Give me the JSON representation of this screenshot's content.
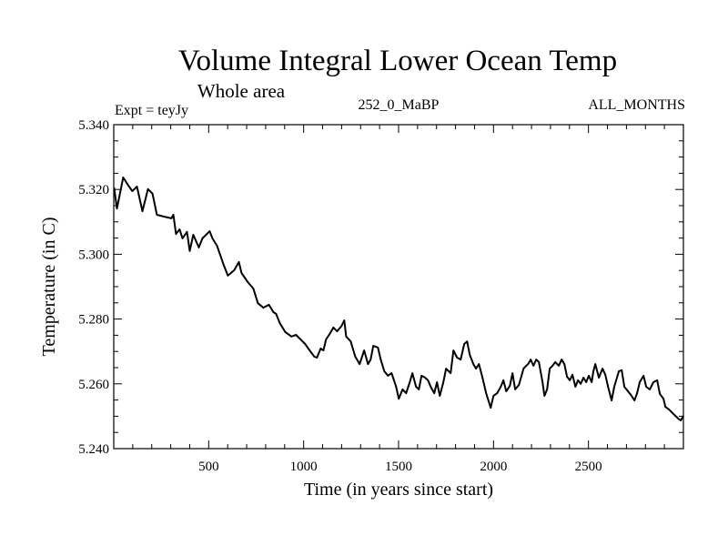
{
  "chart_data": {
    "type": "line",
    "title": "Volume Integral Lower Ocean Temp",
    "subtitle": "Whole area",
    "annotations": {
      "left": "Expt = teyJy",
      "center": "252_0_MaBP",
      "right": "ALL_MONTHS"
    },
    "xlabel": "Time (in years since start)",
    "ylabel": "Temperature (in C)",
    "xlim": [
      0,
      3000
    ],
    "ylim": [
      5.24,
      5.34
    ],
    "x_ticks": [
      500,
      1000,
      1500,
      2000,
      2500
    ],
    "x_tick_labels": [
      "500",
      "1000",
      "1500",
      "2000",
      "2500"
    ],
    "x_minor_step": 100,
    "y_ticks": [
      5.24,
      5.26,
      5.28,
      5.3,
      5.32,
      5.34
    ],
    "y_tick_labels": [
      "5.240",
      "5.260",
      "5.280",
      "5.300",
      "5.320",
      "5.340"
    ],
    "y_minor_step": 0.005,
    "grid": false,
    "legend": "none",
    "series": [
      {
        "name": "Volume Integral Lower Ocean Temp",
        "color": "#000000",
        "points": [
          [
            2,
            5.3206
          ],
          [
            17,
            5.3141
          ],
          [
            50,
            5.3237
          ],
          [
            74,
            5.3215
          ],
          [
            98,
            5.3195
          ],
          [
            122,
            5.3209
          ],
          [
            151,
            5.3133
          ],
          [
            180,
            5.3201
          ],
          [
            204,
            5.3187
          ],
          [
            227,
            5.3122
          ],
          [
            266,
            5.3116
          ],
          [
            304,
            5.3111
          ],
          [
            314,
            5.3122
          ],
          [
            328,
            5.3063
          ],
          [
            347,
            5.3077
          ],
          [
            362,
            5.3049
          ],
          [
            386,
            5.3069
          ],
          [
            400,
            5.301
          ],
          [
            419,
            5.306
          ],
          [
            448,
            5.3021
          ],
          [
            467,
            5.3049
          ],
          [
            505,
            5.3071
          ],
          [
            520,
            5.3049
          ],
          [
            544,
            5.3026
          ],
          [
            577,
            5.297
          ],
          [
            601,
            5.2934
          ],
          [
            635,
            5.2951
          ],
          [
            659,
            5.2976
          ],
          [
            673,
            5.2942
          ],
          [
            706,
            5.2914
          ],
          [
            735,
            5.2894
          ],
          [
            759,
            5.2849
          ],
          [
            788,
            5.2835
          ],
          [
            817,
            5.2844
          ],
          [
            841,
            5.2821
          ],
          [
            855,
            5.2816
          ],
          [
            874,
            5.2788
          ],
          [
            903,
            5.276
          ],
          [
            936,
            5.2746
          ],
          [
            960,
            5.2751
          ],
          [
            984,
            5.2737
          ],
          [
            1008,
            5.2723
          ],
          [
            1032,
            5.2703
          ],
          [
            1056,
            5.2684
          ],
          [
            1070,
            5.2681
          ],
          [
            1090,
            5.2709
          ],
          [
            1104,
            5.2703
          ],
          [
            1118,
            5.2737
          ],
          [
            1137,
            5.2754
          ],
          [
            1157,
            5.2774
          ],
          [
            1176,
            5.2762
          ],
          [
            1200,
            5.2779
          ],
          [
            1214,
            5.2796
          ],
          [
            1224,
            5.2746
          ],
          [
            1248,
            5.2731
          ],
          [
            1272,
            5.2684
          ],
          [
            1295,
            5.2661
          ],
          [
            1319,
            5.2703
          ],
          [
            1339,
            5.2661
          ],
          [
            1353,
            5.2675
          ],
          [
            1367,
            5.2717
          ],
          [
            1391,
            5.2712
          ],
          [
            1406,
            5.2675
          ],
          [
            1425,
            5.2639
          ],
          [
            1444,
            5.2625
          ],
          [
            1463,
            5.2633
          ],
          [
            1487,
            5.2591
          ],
          [
            1501,
            5.2554
          ],
          [
            1521,
            5.2583
          ],
          [
            1540,
            5.2571
          ],
          [
            1559,
            5.2605
          ],
          [
            1573,
            5.2633
          ],
          [
            1592,
            5.2591
          ],
          [
            1607,
            5.2583
          ],
          [
            1621,
            5.2625
          ],
          [
            1640,
            5.2619
          ],
          [
            1655,
            5.2611
          ],
          [
            1669,
            5.2591
          ],
          [
            1688,
            5.2571
          ],
          [
            1702,
            5.2605
          ],
          [
            1717,
            5.2563
          ],
          [
            1736,
            5.2605
          ],
          [
            1750,
            5.2647
          ],
          [
            1774,
            5.2633
          ],
          [
            1789,
            5.2703
          ],
          [
            1808,
            5.2681
          ],
          [
            1827,
            5.2675
          ],
          [
            1846,
            5.2723
          ],
          [
            1861,
            5.2731
          ],
          [
            1875,
            5.2689
          ],
          [
            1894,
            5.2661
          ],
          [
            1908,
            5.2647
          ],
          [
            1923,
            5.2661
          ],
          [
            1942,
            5.2619
          ],
          [
            1961,
            5.2571
          ],
          [
            1985,
            5.2526
          ],
          [
            2000,
            5.2563
          ],
          [
            2019,
            5.2571
          ],
          [
            2038,
            5.2591
          ],
          [
            2052,
            5.2611
          ],
          [
            2067,
            5.2577
          ],
          [
            2086,
            5.2594
          ],
          [
            2100,
            5.2633
          ],
          [
            2114,
            5.2583
          ],
          [
            2134,
            5.2597
          ],
          [
            2158,
            5.2647
          ],
          [
            2172,
            5.2656
          ],
          [
            2182,
            5.2661
          ],
          [
            2196,
            5.2675
          ],
          [
            2210,
            5.2656
          ],
          [
            2225,
            5.2675
          ],
          [
            2239,
            5.2667
          ],
          [
            2258,
            5.2605
          ],
          [
            2268,
            5.2563
          ],
          [
            2282,
            5.2583
          ],
          [
            2296,
            5.2647
          ],
          [
            2311,
            5.2656
          ],
          [
            2325,
            5.2667
          ],
          [
            2344,
            5.2656
          ],
          [
            2359,
            5.2675
          ],
          [
            2373,
            5.2661
          ],
          [
            2387,
            5.2622
          ],
          [
            2402,
            5.2611
          ],
          [
            2416,
            5.2628
          ],
          [
            2431,
            5.2591
          ],
          [
            2445,
            5.2611
          ],
          [
            2459,
            5.26
          ],
          [
            2474,
            5.2619
          ],
          [
            2488,
            5.2605
          ],
          [
            2502,
            5.2625
          ],
          [
            2517,
            5.2605
          ],
          [
            2526,
            5.2639
          ],
          [
            2536,
            5.2661
          ],
          [
            2555,
            5.2619
          ],
          [
            2574,
            5.2647
          ],
          [
            2589,
            5.2628
          ],
          [
            2603,
            5.2591
          ],
          [
            2622,
            5.2549
          ],
          [
            2636,
            5.2591
          ],
          [
            2660,
            5.2639
          ],
          [
            2675,
            5.2642
          ],
          [
            2689,
            5.2591
          ],
          [
            2708,
            5.2577
          ],
          [
            2727,
            5.2563
          ],
          [
            2742,
            5.2549
          ],
          [
            2756,
            5.2571
          ],
          [
            2770,
            5.2605
          ],
          [
            2790,
            5.2625
          ],
          [
            2804,
            5.2591
          ],
          [
            2823,
            5.2583
          ],
          [
            2842,
            5.2605
          ],
          [
            2862,
            5.2611
          ],
          [
            2876,
            5.2569
          ],
          [
            2895,
            5.2554
          ],
          [
            2905,
            5.2529
          ],
          [
            2924,
            5.2521
          ],
          [
            2948,
            5.2507
          ],
          [
            2972,
            5.2493
          ],
          [
            2986,
            5.2487
          ],
          [
            3000,
            5.2501
          ]
        ]
      }
    ]
  }
}
